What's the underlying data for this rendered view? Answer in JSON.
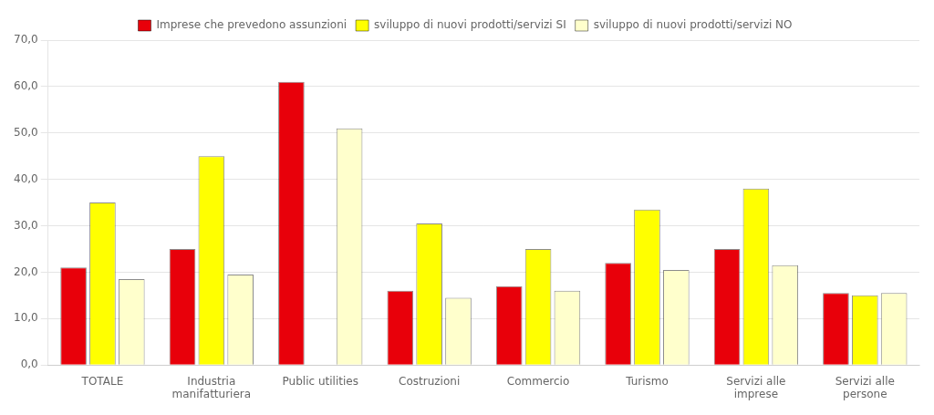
{
  "chart_data": {
    "type": "bar",
    "categories": [
      "TOTALE",
      "Industria\nmanifatturiera",
      "Public utilities",
      "Costruzioni",
      "Commercio",
      "Turismo",
      "Servizi alle\nimprese",
      "Servizi alle\npersone"
    ],
    "series": [
      {
        "name": "Imprese che prevedono assunzioni",
        "color": "#E8000A",
        "values": [
          21.0,
          25.0,
          61.0,
          16.0,
          17.0,
          22.0,
          25.0,
          15.5
        ]
      },
      {
        "name": "sviluppo di nuovi prodotti/servizi SI",
        "color": "#FFFF00",
        "values": [
          35.0,
          45.0,
          0.0,
          30.5,
          25.0,
          33.5,
          38.0,
          15.0
        ]
      },
      {
        "name": "sviluppo di nuovi prodotti/servizi NO",
        "color": "#FFFFCC",
        "values": [
          18.5,
          19.5,
          51.0,
          14.5,
          16.0,
          20.5,
          21.5,
          15.5
        ]
      }
    ],
    "ylim": [
      0,
      70
    ],
    "yticks": [
      {
        "value": 0,
        "label": "0,0"
      },
      {
        "value": 10,
        "label": "10,0"
      },
      {
        "value": 20,
        "label": "20,0"
      },
      {
        "value": 30,
        "label": "30,0"
      },
      {
        "value": 40,
        "label": "40,0"
      },
      {
        "value": 50,
        "label": "50,0"
      },
      {
        "value": 60,
        "label": "60,0"
      },
      {
        "value": 70,
        "label": "70,0"
      }
    ],
    "grid": true,
    "legend": "top"
  }
}
